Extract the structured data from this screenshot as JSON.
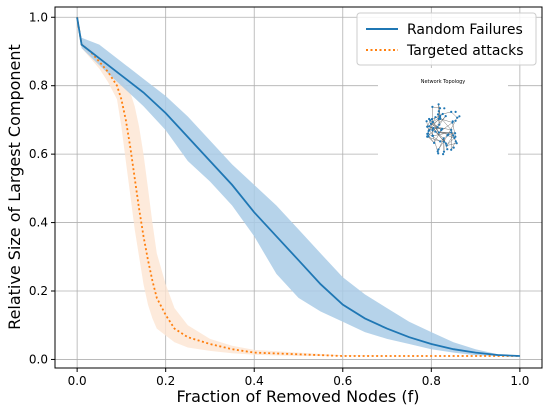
{
  "chart_data": {
    "type": "line",
    "xlabel": "Fraction of Removed Nodes (f)",
    "ylabel": "Relative Size of Largest Component",
    "xlim": [
      -0.05,
      1.05
    ],
    "ylim": [
      -0.025,
      1.03
    ],
    "xticks": [
      "0.0",
      "0.2",
      "0.4",
      "0.6",
      "0.8",
      "1.0"
    ],
    "yticks": [
      "0.0",
      "0.2",
      "0.4",
      "0.6",
      "0.8",
      "1.0"
    ],
    "grid": true,
    "legend_position": "top-right",
    "colors": {
      "random": "#1f77b4",
      "random_band": "#a9cbe6",
      "targeted": "#ff7f0e",
      "targeted_band": "#fde5d2"
    },
    "series": [
      {
        "name": "Random Failures",
        "style": "solid",
        "x": [
          0.0,
          0.01,
          0.05,
          0.1,
          0.15,
          0.2,
          0.25,
          0.3,
          0.35,
          0.4,
          0.45,
          0.5,
          0.55,
          0.6,
          0.65,
          0.7,
          0.75,
          0.8,
          0.85,
          0.9,
          0.95,
          1.0
        ],
        "y": [
          1.0,
          0.92,
          0.88,
          0.83,
          0.78,
          0.72,
          0.65,
          0.58,
          0.51,
          0.43,
          0.36,
          0.29,
          0.22,
          0.16,
          0.12,
          0.09,
          0.065,
          0.045,
          0.03,
          0.02,
          0.013,
          0.01
        ],
        "band_upper": [
          1.0,
          0.94,
          0.92,
          0.87,
          0.82,
          0.77,
          0.71,
          0.64,
          0.57,
          0.51,
          0.45,
          0.38,
          0.31,
          0.24,
          0.19,
          0.15,
          0.11,
          0.08,
          0.05,
          0.03,
          0.015,
          0.01
        ],
        "band_lower": [
          1.0,
          0.91,
          0.86,
          0.8,
          0.74,
          0.67,
          0.58,
          0.52,
          0.45,
          0.36,
          0.25,
          0.18,
          0.14,
          0.11,
          0.08,
          0.06,
          0.045,
          0.03,
          0.02,
          0.012,
          0.01,
          0.01
        ]
      },
      {
        "name": "Targeted attacks",
        "style": "dotted",
        "x": [
          0.0,
          0.01,
          0.03,
          0.05,
          0.07,
          0.09,
          0.1,
          0.11,
          0.12,
          0.13,
          0.14,
          0.15,
          0.16,
          0.17,
          0.18,
          0.2,
          0.22,
          0.25,
          0.3,
          0.35,
          0.4,
          0.5,
          0.6,
          0.7,
          0.8,
          0.9,
          1.0
        ],
        "y": [
          1.0,
          0.92,
          0.9,
          0.87,
          0.84,
          0.8,
          0.76,
          0.7,
          0.62,
          0.53,
          0.44,
          0.36,
          0.29,
          0.23,
          0.18,
          0.13,
          0.09,
          0.065,
          0.045,
          0.03,
          0.02,
          0.015,
          0.01,
          0.01,
          0.01,
          0.01,
          0.01
        ],
        "band_upper": [
          1.0,
          0.93,
          0.91,
          0.88,
          0.86,
          0.84,
          0.82,
          0.8,
          0.78,
          0.74,
          0.68,
          0.6,
          0.5,
          0.4,
          0.31,
          0.22,
          0.15,
          0.1,
          0.06,
          0.04,
          0.028,
          0.02,
          0.012,
          0.01,
          0.01,
          0.01,
          0.01
        ],
        "band_lower": [
          1.0,
          0.91,
          0.88,
          0.85,
          0.81,
          0.76,
          0.68,
          0.58,
          0.48,
          0.38,
          0.3,
          0.22,
          0.16,
          0.12,
          0.09,
          0.07,
          0.05,
          0.035,
          0.025,
          0.018,
          0.014,
          0.01,
          0.01,
          0.01,
          0.01,
          0.01,
          0.01
        ]
      }
    ],
    "inset": {
      "title": "Network Topology"
    }
  }
}
